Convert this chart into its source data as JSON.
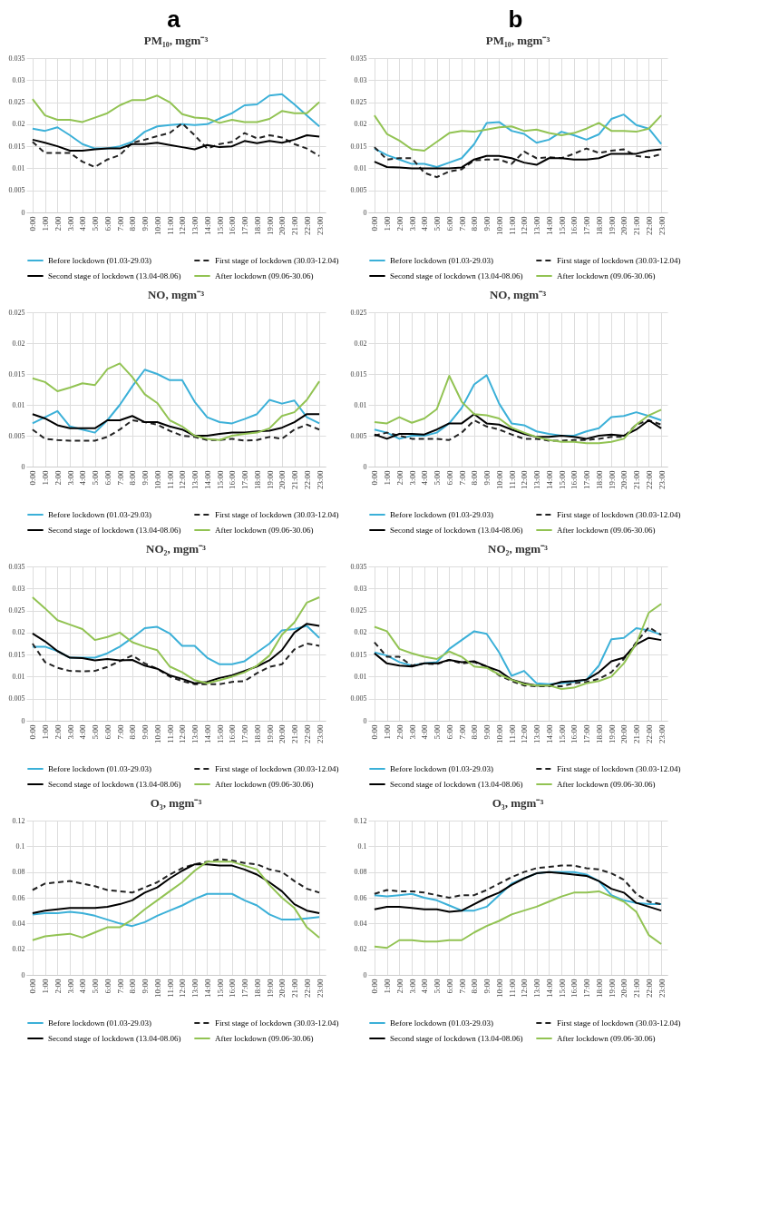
{
  "chart_data": [
    {
      "type": "line",
      "title": "PM₁₀, mgm⁻³",
      "annotations": [
        "a"
      ],
      "categories": [
        "0:00",
        "1:00",
        "2:00",
        "3:00",
        "4:00",
        "5:00",
        "6:00",
        "7:00",
        "8:00",
        "9:00",
        "10:00",
        "11:00",
        "12:00",
        "13:00",
        "14:00",
        "15:00",
        "16:00",
        "17:00",
        "18:00",
        "19:00",
        "20:00",
        "21:00",
        "22:00",
        "23:00"
      ],
      "ylim": [
        0,
        0.035
      ],
      "yticks": [
        0,
        0.005,
        0.01,
        0.015,
        0.02,
        0.025,
        0.03,
        0.035
      ],
      "grid": true,
      "legend": "bottom",
      "series": [
        {
          "name": "Before lockdown (01.03-29.03)",
          "color": "#3bb0d8",
          "values": [
            0.019,
            0.0185,
            0.0193,
            0.0175,
            0.0155,
            0.0145,
            0.0145,
            0.015,
            0.016,
            0.0183,
            0.0195,
            0.0198,
            0.02,
            0.0198,
            0.02,
            0.0213,
            0.0225,
            0.0243,
            0.0245,
            0.0265,
            0.0268,
            0.0245,
            0.022,
            0.0195
          ]
        },
        {
          "name": "First stage of lockdown (30.03-12.04)",
          "color": "#222222",
          "line_style": "dashed",
          "values": [
            0.016,
            0.0135,
            0.0135,
            0.0135,
            0.0115,
            0.0103,
            0.012,
            0.013,
            0.0158,
            0.0165,
            0.0173,
            0.018,
            0.0202,
            0.0175,
            0.0145,
            0.0155,
            0.016,
            0.018,
            0.0168,
            0.0175,
            0.017,
            0.0155,
            0.0145,
            0.0128
          ]
        },
        {
          "name": "Second stage of lockdown (13.04-08.06)",
          "color": "#000000",
          "values": [
            0.0165,
            0.0158,
            0.015,
            0.014,
            0.014,
            0.0143,
            0.0145,
            0.0145,
            0.0155,
            0.0155,
            0.0158,
            0.0153,
            0.0148,
            0.0143,
            0.0153,
            0.0148,
            0.015,
            0.0162,
            0.0157,
            0.0162,
            0.0158,
            0.0165,
            0.0175,
            0.0172
          ]
        },
        {
          "name": "After lockdown (09.06-30.06)",
          "color": "#92c353",
          "values": [
            0.0257,
            0.022,
            0.021,
            0.021,
            0.0205,
            0.0215,
            0.0225,
            0.0243,
            0.0255,
            0.0255,
            0.0265,
            0.025,
            0.0223,
            0.0215,
            0.0213,
            0.0203,
            0.021,
            0.0205,
            0.0205,
            0.0212,
            0.023,
            0.0225,
            0.0225,
            0.025
          ]
        }
      ]
    },
    {
      "type": "line",
      "title": "PM₁₀, mgm⁻³",
      "annotations": [
        "b"
      ],
      "categories": [
        "0:00",
        "1:00",
        "2:00",
        "3:00",
        "4:00",
        "5:00",
        "6:00",
        "7:00",
        "8:00",
        "9:00",
        "10:00",
        "11:00",
        "12:00",
        "13:00",
        "14:00",
        "15:00",
        "16:00",
        "17:00",
        "18:00",
        "19:00",
        "20:00",
        "21:00",
        "22:00",
        "23:00"
      ],
      "ylim": [
        0,
        0.035
      ],
      "yticks": [
        0,
        0.005,
        0.01,
        0.015,
        0.02,
        0.025,
        0.03,
        0.035
      ],
      "grid": true,
      "legend": "bottom",
      "series": [
        {
          "name": "Before lockdown (01.03-29.03)",
          "color": "#3bb0d8",
          "values": [
            0.0145,
            0.013,
            0.012,
            0.011,
            0.011,
            0.0103,
            0.0113,
            0.0123,
            0.0155,
            0.0203,
            0.0205,
            0.0185,
            0.0178,
            0.0158,
            0.0165,
            0.0183,
            0.0175,
            0.0165,
            0.0177,
            0.0212,
            0.0222,
            0.0198,
            0.019,
            0.0155
          ]
        },
        {
          "name": "First stage of lockdown (30.03-12.04)",
          "color": "#222222",
          "line_style": "dashed",
          "values": [
            0.0148,
            0.012,
            0.0123,
            0.0123,
            0.009,
            0.008,
            0.0093,
            0.0098,
            0.0118,
            0.012,
            0.012,
            0.011,
            0.0138,
            0.0123,
            0.0125,
            0.0123,
            0.0133,
            0.0145,
            0.0135,
            0.014,
            0.0143,
            0.0128,
            0.0125,
            0.0132
          ]
        },
        {
          "name": "Second stage of lockdown (13.04-08.06)",
          "color": "#000000",
          "values": [
            0.0115,
            0.0103,
            0.0102,
            0.01,
            0.01,
            0.01,
            0.01,
            0.0102,
            0.012,
            0.0128,
            0.0128,
            0.0123,
            0.0113,
            0.0108,
            0.0123,
            0.0123,
            0.012,
            0.012,
            0.0123,
            0.0133,
            0.0133,
            0.0133,
            0.014,
            0.0143
          ]
        },
        {
          "name": "After lockdown (09.06-30.06)",
          "color": "#92c353",
          "values": [
            0.022,
            0.0178,
            0.0163,
            0.0143,
            0.014,
            0.016,
            0.018,
            0.0185,
            0.0183,
            0.0188,
            0.0193,
            0.0195,
            0.0185,
            0.0188,
            0.018,
            0.0175,
            0.018,
            0.019,
            0.0203,
            0.0185,
            0.0185,
            0.0183,
            0.019,
            0.022
          ]
        }
      ]
    },
    {
      "type": "line",
      "title": "NO, mgm⁻³",
      "categories": [
        "0:00",
        "1:00",
        "2:00",
        "3:00",
        "4:00",
        "5:00",
        "6:00",
        "7:00",
        "8:00",
        "9:00",
        "10:00",
        "11:00",
        "12:00",
        "13:00",
        "14:00",
        "15:00",
        "16:00",
        "17:00",
        "18:00",
        "19:00",
        "20:00",
        "21:00",
        "22:00",
        "23:00"
      ],
      "ylim": [
        0,
        0.025
      ],
      "yticks": [
        0,
        0.005,
        0.01,
        0.015,
        0.02,
        0.025
      ],
      "grid": true,
      "legend": "bottom",
      "series": [
        {
          "name": "Before lockdown (01.03-29.03)",
          "color": "#3bb0d8",
          "values": [
            0.007,
            0.008,
            0.009,
            0.0065,
            0.006,
            0.0055,
            0.0075,
            0.01,
            0.013,
            0.0157,
            0.015,
            0.014,
            0.014,
            0.0105,
            0.008,
            0.0072,
            0.007,
            0.0077,
            0.0085,
            0.0108,
            0.0102,
            0.0107,
            0.008,
            0.007
          ]
        },
        {
          "name": "First stage of lockdown (30.03-12.04)",
          "color": "#222222",
          "line_style": "dashed",
          "values": [
            0.006,
            0.0045,
            0.0043,
            0.0042,
            0.0042,
            0.0042,
            0.0048,
            0.006,
            0.0075,
            0.0072,
            0.0068,
            0.0058,
            0.005,
            0.0048,
            0.0043,
            0.0043,
            0.0045,
            0.0042,
            0.0043,
            0.0048,
            0.0045,
            0.006,
            0.0068,
            0.006
          ]
        },
        {
          "name": "Second stage of lockdown (13.04-08.06)",
          "color": "#000000",
          "values": [
            0.0085,
            0.0078,
            0.0067,
            0.0062,
            0.0062,
            0.0062,
            0.0075,
            0.0075,
            0.0082,
            0.0072,
            0.0072,
            0.0065,
            0.006,
            0.005,
            0.005,
            0.0053,
            0.0055,
            0.0055,
            0.0057,
            0.0058,
            0.0063,
            0.0072,
            0.0085,
            0.0085
          ]
        },
        {
          "name": "After lockdown (09.06-30.06)",
          "color": "#92c353",
          "values": [
            0.0143,
            0.0137,
            0.0122,
            0.0128,
            0.0135,
            0.0132,
            0.0158,
            0.0167,
            0.0145,
            0.0117,
            0.0103,
            0.0075,
            0.0065,
            0.005,
            0.0045,
            0.0043,
            0.005,
            0.0053,
            0.0055,
            0.0062,
            0.0082,
            0.0088,
            0.0108,
            0.0138
          ]
        }
      ]
    },
    {
      "type": "line",
      "title": "NO, mgm⁻³",
      "categories": [
        "0:00",
        "1:00",
        "2:00",
        "3:00",
        "4:00",
        "5:00",
        "6:00",
        "7:00",
        "8:00",
        "9:00",
        "10:00",
        "11:00",
        "12:00",
        "13:00",
        "14:00",
        "15:00",
        "16:00",
        "17:00",
        "18:00",
        "19:00",
        "20:00",
        "21:00",
        "22:00",
        "23:00"
      ],
      "ylim": [
        0,
        0.025
      ],
      "yticks": [
        0,
        0.005,
        0.01,
        0.015,
        0.02,
        0.025
      ],
      "grid": true,
      "legend": "bottom",
      "series": [
        {
          "name": "Before lockdown (01.03-29.03)",
          "color": "#3bb0d8",
          "values": [
            0.006,
            0.0055,
            0.0045,
            0.005,
            0.005,
            0.0055,
            0.007,
            0.0095,
            0.0133,
            0.0148,
            0.0102,
            0.007,
            0.0067,
            0.0057,
            0.0053,
            0.005,
            0.005,
            0.0057,
            0.0062,
            0.008,
            0.0082,
            0.0088,
            0.0082,
            0.0075
          ]
        },
        {
          "name": "First stage of lockdown (30.03-12.04)",
          "color": "#222222",
          "line_style": "dashed",
          "values": [
            0.005,
            0.0055,
            0.005,
            0.0045,
            0.0045,
            0.0045,
            0.0043,
            0.0055,
            0.0075,
            0.0065,
            0.006,
            0.0052,
            0.0045,
            0.0045,
            0.0042,
            0.0042,
            0.0043,
            0.0043,
            0.0045,
            0.0048,
            0.0048,
            0.0068,
            0.0075,
            0.0068
          ]
        },
        {
          "name": "Second stage of lockdown (13.04-08.06)",
          "color": "#000000",
          "values": [
            0.0052,
            0.0045,
            0.0053,
            0.0053,
            0.0052,
            0.006,
            0.007,
            0.007,
            0.0085,
            0.007,
            0.0068,
            0.006,
            0.0053,
            0.0048,
            0.0048,
            0.005,
            0.0048,
            0.0045,
            0.005,
            0.0052,
            0.005,
            0.006,
            0.0075,
            0.0062
          ]
        },
        {
          "name": "After lockdown (09.06-30.06)",
          "color": "#92c353",
          "values": [
            0.0072,
            0.007,
            0.008,
            0.0071,
            0.0078,
            0.0093,
            0.0147,
            0.0105,
            0.0085,
            0.0083,
            0.0078,
            0.0063,
            0.0055,
            0.0048,
            0.0043,
            0.004,
            0.004,
            0.0038,
            0.0038,
            0.004,
            0.0045,
            0.0068,
            0.0083,
            0.0092
          ]
        }
      ]
    },
    {
      "type": "line",
      "title": "NO₂, mgm⁻³",
      "categories": [
        "0:00",
        "1:00",
        "2:00",
        "3:00",
        "4:00",
        "5:00",
        "6:00",
        "7:00",
        "8:00",
        "9:00",
        "10:00",
        "11:00",
        "12:00",
        "13:00",
        "14:00",
        "15:00",
        "16:00",
        "17:00",
        "18:00",
        "19:00",
        "20:00",
        "21:00",
        "22:00",
        "23:00"
      ],
      "ylim": [
        0,
        0.035
      ],
      "yticks": [
        0,
        0.005,
        0.01,
        0.015,
        0.02,
        0.025,
        0.03,
        0.035
      ],
      "grid": true,
      "legend": "bottom",
      "series": [
        {
          "name": "Before lockdown (01.03-29.03)",
          "color": "#3bb0d8",
          "values": [
            0.0168,
            0.0168,
            0.0158,
            0.0143,
            0.0143,
            0.0143,
            0.0153,
            0.0168,
            0.0188,
            0.021,
            0.0213,
            0.0198,
            0.017,
            0.017,
            0.0143,
            0.0128,
            0.0128,
            0.0135,
            0.0155,
            0.0175,
            0.0205,
            0.0208,
            0.0215,
            0.0188
          ]
        },
        {
          "name": "First stage of lockdown (30.03-12.04)",
          "color": "#222222",
          "line_style": "dashed",
          "values": [
            0.0175,
            0.0133,
            0.012,
            0.0113,
            0.0112,
            0.0113,
            0.0122,
            0.0135,
            0.0148,
            0.013,
            0.0118,
            0.01,
            0.009,
            0.0083,
            0.0083,
            0.0083,
            0.0088,
            0.009,
            0.0108,
            0.0122,
            0.0128,
            0.0162,
            0.0175,
            0.017
          ]
        },
        {
          "name": "Second stage of lockdown (13.04-08.06)",
          "color": "#000000",
          "values": [
            0.0198,
            0.018,
            0.0158,
            0.0143,
            0.0142,
            0.0137,
            0.014,
            0.0137,
            0.0138,
            0.0125,
            0.0118,
            0.0103,
            0.0095,
            0.0085,
            0.0088,
            0.0097,
            0.0103,
            0.0113,
            0.0123,
            0.0137,
            0.016,
            0.02,
            0.022,
            0.0215
          ]
        },
        {
          "name": "After lockdown (09.06-30.06)",
          "color": "#92c353",
          "values": [
            0.028,
            0.0255,
            0.0228,
            0.0218,
            0.0208,
            0.0183,
            0.019,
            0.02,
            0.0178,
            0.0168,
            0.016,
            0.0123,
            0.011,
            0.0092,
            0.0085,
            0.0092,
            0.01,
            0.011,
            0.0125,
            0.0148,
            0.0195,
            0.0223,
            0.0268,
            0.028
          ]
        }
      ]
    },
    {
      "type": "line",
      "title": "NO₂, mgm⁻³",
      "categories": [
        "0:00",
        "1:00",
        "2:00",
        "3:00",
        "4:00",
        "5:00",
        "6:00",
        "7:00",
        "8:00",
        "9:00",
        "10:00",
        "11:00",
        "12:00",
        "13:00",
        "14:00",
        "15:00",
        "16:00",
        "17:00",
        "18:00",
        "19:00",
        "20:00",
        "21:00",
        "22:00",
        "23:00"
      ],
      "ylim": [
        0,
        0.035
      ],
      "yticks": [
        0,
        0.005,
        0.01,
        0.015,
        0.02,
        0.025,
        0.03,
        0.035
      ],
      "grid": true,
      "legend": "bottom",
      "series": [
        {
          "name": "Before lockdown (01.03-29.03)",
          "color": "#3bb0d8",
          "values": [
            0.0155,
            0.0148,
            0.0133,
            0.0125,
            0.013,
            0.0133,
            0.0163,
            0.0183,
            0.0203,
            0.0197,
            0.0155,
            0.0102,
            0.0113,
            0.0085,
            0.0083,
            0.0085,
            0.0088,
            0.0093,
            0.0125,
            0.0185,
            0.0188,
            0.021,
            0.0205,
            0.0195
          ]
        },
        {
          "name": "First stage of lockdown (30.03-12.04)",
          "color": "#222222",
          "line_style": "dashed",
          "values": [
            0.0178,
            0.0145,
            0.0145,
            0.0125,
            0.013,
            0.0128,
            0.0138,
            0.013,
            0.0133,
            0.0123,
            0.0103,
            0.009,
            0.008,
            0.0078,
            0.0078,
            0.0078,
            0.0085,
            0.0088,
            0.0095,
            0.011,
            0.014,
            0.0178,
            0.0212,
            0.0195
          ]
        },
        {
          "name": "Second stage of lockdown (13.04-08.06)",
          "color": "#000000",
          "values": [
            0.0153,
            0.013,
            0.0125,
            0.0123,
            0.013,
            0.013,
            0.0138,
            0.0133,
            0.0135,
            0.0123,
            0.0113,
            0.0093,
            0.0085,
            0.008,
            0.008,
            0.0088,
            0.009,
            0.0093,
            0.011,
            0.0135,
            0.0143,
            0.0173,
            0.0188,
            0.0183
          ]
        },
        {
          "name": "After lockdown (09.06-30.06)",
          "color": "#92c353",
          "values": [
            0.0213,
            0.0203,
            0.0163,
            0.0153,
            0.0145,
            0.014,
            0.0157,
            0.0145,
            0.0123,
            0.012,
            0.0105,
            0.0093,
            0.0083,
            0.008,
            0.008,
            0.0072,
            0.0075,
            0.0085,
            0.009,
            0.01,
            0.013,
            0.0175,
            0.0245,
            0.0265
          ]
        }
      ]
    },
    {
      "type": "line",
      "title": "O₃, mgm⁻³",
      "categories": [
        "0:00",
        "1:00",
        "2:00",
        "3:00",
        "4:00",
        "5:00",
        "6:00",
        "7:00",
        "8:00",
        "9:00",
        "10:00",
        "11:00",
        "12:00",
        "13:00",
        "14:00",
        "15:00",
        "16:00",
        "17:00",
        "18:00",
        "19:00",
        "20:00",
        "21:00",
        "22:00",
        "23:00"
      ],
      "ylim": [
        0,
        0.12
      ],
      "yticks": [
        0,
        0.02,
        0.04,
        0.06,
        0.08,
        0.1,
        0.12
      ],
      "grid": true,
      "legend": "bottom",
      "series": [
        {
          "name": "Before lockdown (01.03-29.03)",
          "color": "#3bb0d8",
          "values": [
            0.047,
            0.048,
            0.048,
            0.049,
            0.048,
            0.046,
            0.043,
            0.04,
            0.038,
            0.041,
            0.046,
            0.05,
            0.054,
            0.059,
            0.063,
            0.063,
            0.063,
            0.058,
            0.054,
            0.047,
            0.043,
            0.043,
            0.044,
            0.045
          ]
        },
        {
          "name": "First stage of lockdown (30.03-12.04)",
          "color": "#222222",
          "line_style": "dashed",
          "values": [
            0.066,
            0.071,
            0.072,
            0.073,
            0.071,
            0.069,
            0.066,
            0.065,
            0.064,
            0.068,
            0.072,
            0.078,
            0.083,
            0.086,
            0.088,
            0.09,
            0.089,
            0.087,
            0.086,
            0.082,
            0.08,
            0.073,
            0.067,
            0.064
          ]
        },
        {
          "name": "Second stage of lockdown (13.04-08.06)",
          "color": "#000000",
          "values": [
            0.048,
            0.05,
            0.051,
            0.052,
            0.052,
            0.052,
            0.053,
            0.055,
            0.058,
            0.064,
            0.068,
            0.075,
            0.081,
            0.086,
            0.086,
            0.085,
            0.085,
            0.082,
            0.078,
            0.072,
            0.065,
            0.055,
            0.05,
            0.048
          ]
        },
        {
          "name": "After lockdown (09.06-30.06)",
          "color": "#92c353",
          "values": [
            0.027,
            0.03,
            0.031,
            0.032,
            0.029,
            0.033,
            0.037,
            0.037,
            0.043,
            0.051,
            0.058,
            0.065,
            0.072,
            0.081,
            0.088,
            0.088,
            0.088,
            0.085,
            0.082,
            0.07,
            0.06,
            0.052,
            0.037,
            0.029
          ]
        }
      ]
    },
    {
      "type": "line",
      "title": "O₃, mgm⁻³",
      "categories": [
        "0:00",
        "1:00",
        "2:00",
        "3:00",
        "4:00",
        "5:00",
        "6:00",
        "7:00",
        "8:00",
        "9:00",
        "10:00",
        "11:00",
        "12:00",
        "13:00",
        "14:00",
        "15:00",
        "16:00",
        "17:00",
        "18:00",
        "19:00",
        "20:00",
        "21:00",
        "22:00",
        "23:00"
      ],
      "ylim": [
        0,
        0.12
      ],
      "yticks": [
        0,
        0.02,
        0.04,
        0.06,
        0.08,
        0.1,
        0.12
      ],
      "grid": true,
      "legend": "bottom",
      "series": [
        {
          "name": "Before lockdown (01.03-29.03)",
          "color": "#3bb0d8",
          "values": [
            0.062,
            0.061,
            0.062,
            0.063,
            0.06,
            0.058,
            0.054,
            0.05,
            0.05,
            0.053,
            0.062,
            0.071,
            0.075,
            0.079,
            0.08,
            0.08,
            0.08,
            0.078,
            0.073,
            0.062,
            0.058,
            0.056,
            0.055,
            0.055
          ]
        },
        {
          "name": "First stage of lockdown (30.03-12.04)",
          "color": "#222222",
          "line_style": "dashed",
          "values": [
            0.063,
            0.066,
            0.065,
            0.065,
            0.064,
            0.062,
            0.06,
            0.062,
            0.062,
            0.066,
            0.071,
            0.076,
            0.08,
            0.083,
            0.084,
            0.085,
            0.085,
            0.083,
            0.082,
            0.079,
            0.074,
            0.063,
            0.057,
            0.055
          ]
        },
        {
          "name": "Second stage of lockdown (13.04-08.06)",
          "color": "#000000",
          "values": [
            0.051,
            0.053,
            0.053,
            0.052,
            0.051,
            0.051,
            0.049,
            0.05,
            0.055,
            0.06,
            0.064,
            0.07,
            0.075,
            0.079,
            0.08,
            0.079,
            0.078,
            0.077,
            0.073,
            0.067,
            0.064,
            0.056,
            0.053,
            0.05
          ]
        },
        {
          "name": "After lockdown (09.06-30.06)",
          "color": "#92c353",
          "values": [
            0.022,
            0.021,
            0.027,
            0.027,
            0.026,
            0.026,
            0.027,
            0.027,
            0.033,
            0.038,
            0.042,
            0.047,
            0.05,
            0.053,
            0.057,
            0.061,
            0.064,
            0.064,
            0.065,
            0.061,
            0.057,
            0.049,
            0.031,
            0.024
          ]
        }
      ]
    }
  ]
}
